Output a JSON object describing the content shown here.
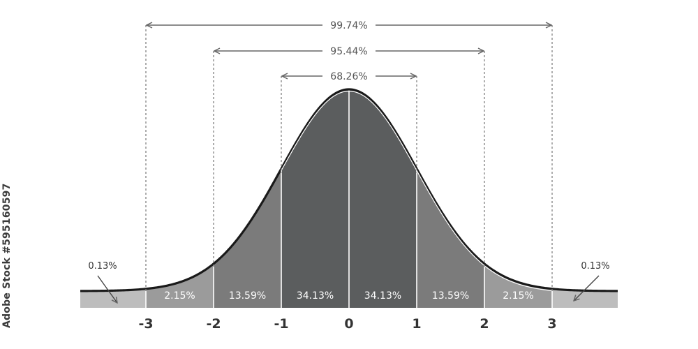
{
  "diagram": {
    "sd_ticks": [
      "-3",
      "-2",
      "-1",
      "0",
      "1",
      "2",
      "3"
    ],
    "regions": [
      {
        "label": "0.13%",
        "value": 0.13,
        "color": "#bdbdbd"
      },
      {
        "label": "2.15%",
        "value": 2.15,
        "color": "#9b9b9b"
      },
      {
        "label": "13.59%",
        "value": 13.59,
        "color": "#7b7b7b"
      },
      {
        "label": "34.13%",
        "value": 34.13,
        "color": "#5b5d5e"
      },
      {
        "label": "34.13%",
        "value": 34.13,
        "color": "#5b5d5e"
      },
      {
        "label": "13.59%",
        "value": 13.59,
        "color": "#7b7b7b"
      },
      {
        "label": "2.15%",
        "value": 2.15,
        "color": "#9b9b9b"
      },
      {
        "label": "0.13%",
        "value": 0.13,
        "color": "#bdbdbd"
      }
    ],
    "spans": [
      {
        "label": "68.26%",
        "from": -1,
        "to": 1
      },
      {
        "label": "95.44%",
        "from": -2,
        "to": 2
      },
      {
        "label": "99.74%",
        "from": -3,
        "to": 3
      }
    ],
    "tail_labels": {
      "left": "0.13%",
      "right": "0.13%"
    },
    "colors": {
      "curve": "#1a1a1a",
      "bracket": "#666666"
    }
  },
  "watermark_id": "#595160597",
  "watermark_brand": "Adobe Stock"
}
